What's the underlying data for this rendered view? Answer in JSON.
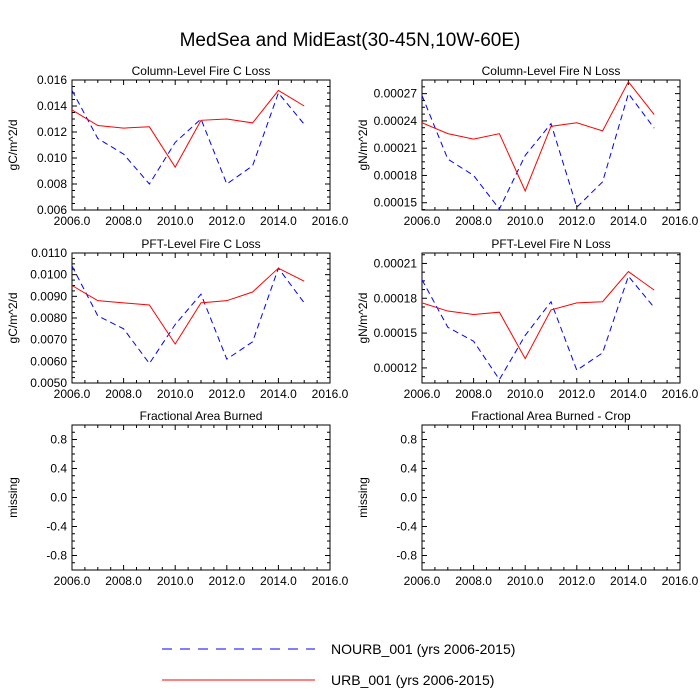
{
  "figure": {
    "title": "MedSea and MidEast(30-45N,10W-60E)"
  },
  "legend": [
    {
      "label": "NOURB_001 (yrs 2006-2015)",
      "color": "#0000ff",
      "dash": "dashed"
    },
    {
      "label": "URB_001 (yrs 2006-2015)",
      "color": "#ff0000",
      "dash": "solid"
    }
  ],
  "chart_data": [
    {
      "type": "line",
      "title": "Column-Level Fire C Loss",
      "xlabel": "",
      "ylabel": "gC/m^2/d",
      "xlim": [
        2006,
        2016
      ],
      "ylim": [
        0.006,
        0.016
      ],
      "xticks": [
        2006,
        2008,
        2010,
        2012,
        2014,
        2016
      ],
      "xtick_labels": [
        "2006.0",
        "2008.0",
        "2010.0",
        "2012.0",
        "2014.0",
        "2016.0"
      ],
      "yticks": [
        0.006,
        0.008,
        0.01,
        0.012,
        0.014,
        0.016
      ],
      "ytick_labels": [
        "0.006",
        "0.008",
        "0.010",
        "0.012",
        "0.014",
        "0.016"
      ],
      "x": [
        2006,
        2007,
        2008,
        2009,
        2010,
        2011,
        2012,
        2013,
        2014,
        2015
      ],
      "series": [
        {
          "name": "NOURB_001 (yrs 2006-2015)",
          "color": "#0000ff",
          "dash": "dashed",
          "values": [
            0.0152,
            0.0115,
            0.0103,
            0.008,
            0.0112,
            0.013,
            0.008,
            0.0094,
            0.015,
            0.0126
          ]
        },
        {
          "name": "URB_001 (yrs 2006-2015)",
          "color": "#ff0000",
          "dash": "solid",
          "values": [
            0.0137,
            0.0125,
            0.0123,
            0.0124,
            0.0093,
            0.0129,
            0.013,
            0.0127,
            0.0152,
            0.014
          ]
        }
      ]
    },
    {
      "type": "line",
      "title": "Column-Level Fire N Loss",
      "xlabel": "",
      "ylabel": "gN/m^2/d",
      "xlim": [
        2006,
        2016
      ],
      "ylim": [
        0.000142,
        0.000285
      ],
      "xticks": [
        2006,
        2008,
        2010,
        2012,
        2014,
        2016
      ],
      "xtick_labels": [
        "2006.0",
        "2008.0",
        "2010.0",
        "2012.0",
        "2014.0",
        "2016.0"
      ],
      "yticks": [
        0.00015,
        0.00018,
        0.00021,
        0.00024,
        0.00027
      ],
      "ytick_labels": [
        "0.00015",
        "0.00018",
        "0.00021",
        "0.00024",
        "0.00027"
      ],
      "x": [
        2006,
        2007,
        2008,
        2009,
        2010,
        2011,
        2012,
        2013,
        2014,
        2015
      ],
      "series": [
        {
          "name": "NOURB_001 (yrs 2006-2015)",
          "color": "#0000ff",
          "dash": "dashed",
          "values": [
            0.000268,
            0.000198,
            0.00018,
            0.000143,
            0.000202,
            0.000237,
            0.000145,
            0.000173,
            0.00027,
            0.000232
          ]
        },
        {
          "name": "URB_001 (yrs 2006-2015)",
          "color": "#ff0000",
          "dash": "solid",
          "values": [
            0.000238,
            0.000226,
            0.00022,
            0.000226,
            0.000163,
            0.000234,
            0.000238,
            0.000229,
            0.000283,
            0.000247
          ]
        }
      ]
    },
    {
      "type": "line",
      "title": "PFT-Level Fire C Loss",
      "xlabel": "",
      "ylabel": "gC/m^2/d",
      "xlim": [
        2006,
        2016
      ],
      "ylim": [
        0.005,
        0.011
      ],
      "xticks": [
        2006,
        2008,
        2010,
        2012,
        2014,
        2016
      ],
      "xtick_labels": [
        "2006.0",
        "2008.0",
        "2010.0",
        "2012.0",
        "2014.0",
        "2016.0"
      ],
      "yticks": [
        0.005,
        0.006,
        0.007,
        0.008,
        0.009,
        0.01,
        0.011
      ],
      "ytick_labels": [
        "0.0050",
        "0.0060",
        "0.0070",
        "0.0080",
        "0.0090",
        "0.0100",
        "0.0110"
      ],
      "x": [
        2006,
        2007,
        2008,
        2009,
        2010,
        2011,
        2012,
        2013,
        2014,
        2015
      ],
      "series": [
        {
          "name": "NOURB_001 (yrs 2006-2015)",
          "color": "#0000ff",
          "dash": "dashed",
          "values": [
            0.0104,
            0.0081,
            0.0075,
            0.0059,
            0.0077,
            0.0091,
            0.0061,
            0.0069,
            0.0103,
            0.0087
          ]
        },
        {
          "name": "URB_001 (yrs 2006-2015)",
          "color": "#ff0000",
          "dash": "solid",
          "values": [
            0.0095,
            0.0088,
            0.0087,
            0.0086,
            0.0068,
            0.0087,
            0.0088,
            0.0092,
            0.0103,
            0.0097
          ]
        }
      ]
    },
    {
      "type": "line",
      "title": "PFT-Level Fire N Loss",
      "xlabel": "",
      "ylabel": "gN/m^2/d",
      "xlim": [
        2006,
        2016
      ],
      "ylim": [
        0.000107,
        0.000219
      ],
      "xticks": [
        2006,
        2008,
        2010,
        2012,
        2014,
        2016
      ],
      "xtick_labels": [
        "2006.0",
        "2008.0",
        "2010.0",
        "2012.0",
        "2014.0",
        "2016.0"
      ],
      "yticks": [
        0.00012,
        0.00015,
        0.00018,
        0.00021
      ],
      "ytick_labels": [
        "0.00012",
        "0.00015",
        "0.00018",
        "0.00021"
      ],
      "x": [
        2006,
        2007,
        2008,
        2009,
        2010,
        2011,
        2012,
        2013,
        2014,
        2015
      ],
      "series": [
        {
          "name": "NOURB_001 (yrs 2006-2015)",
          "color": "#0000ff",
          "dash": "dashed",
          "values": [
            0.000196,
            0.000155,
            0.000143,
            0.00011,
            0.000148,
            0.000177,
            0.000118,
            0.000133,
            0.000199,
            0.000172
          ]
        },
        {
          "name": "URB_001 (yrs 2006-2015)",
          "color": "#ff0000",
          "dash": "solid",
          "values": [
            0.000176,
            0.000169,
            0.000166,
            0.000168,
            0.000128,
            0.00017,
            0.000176,
            0.000177,
            0.000203,
            0.000187
          ]
        }
      ]
    },
    {
      "type": "line",
      "title": "Fractional Area Burned",
      "xlabel": "",
      "ylabel": "missing",
      "xlim": [
        2006,
        2016
      ],
      "ylim": [
        -1,
        1
      ],
      "xticks": [
        2006,
        2008,
        2010,
        2012,
        2014,
        2016
      ],
      "xtick_labels": [
        "2006.0",
        "2008.0",
        "2010.0",
        "2012.0",
        "2014.0",
        "2016.0"
      ],
      "yticks": [
        -0.8,
        -0.4,
        0.0,
        0.4,
        0.8
      ],
      "ytick_labels": [
        "-0.8",
        "-0.4",
        "0.0",
        "0.4",
        "0.8"
      ],
      "x": [],
      "series": []
    },
    {
      "type": "line",
      "title": "Fractional Area Burned - Crop",
      "xlabel": "",
      "ylabel": "missing",
      "xlim": [
        2006,
        2016
      ],
      "ylim": [
        -1,
        1
      ],
      "xticks": [
        2006,
        2008,
        2010,
        2012,
        2014,
        2016
      ],
      "xtick_labels": [
        "2006.0",
        "2008.0",
        "2010.0",
        "2012.0",
        "2014.0",
        "2016.0"
      ],
      "yticks": [
        -0.8,
        -0.4,
        0.0,
        0.4,
        0.8
      ],
      "ytick_labels": [
        "-0.8",
        "-0.4",
        "0.0",
        "0.4",
        "0.8"
      ],
      "x": [],
      "series": []
    }
  ]
}
